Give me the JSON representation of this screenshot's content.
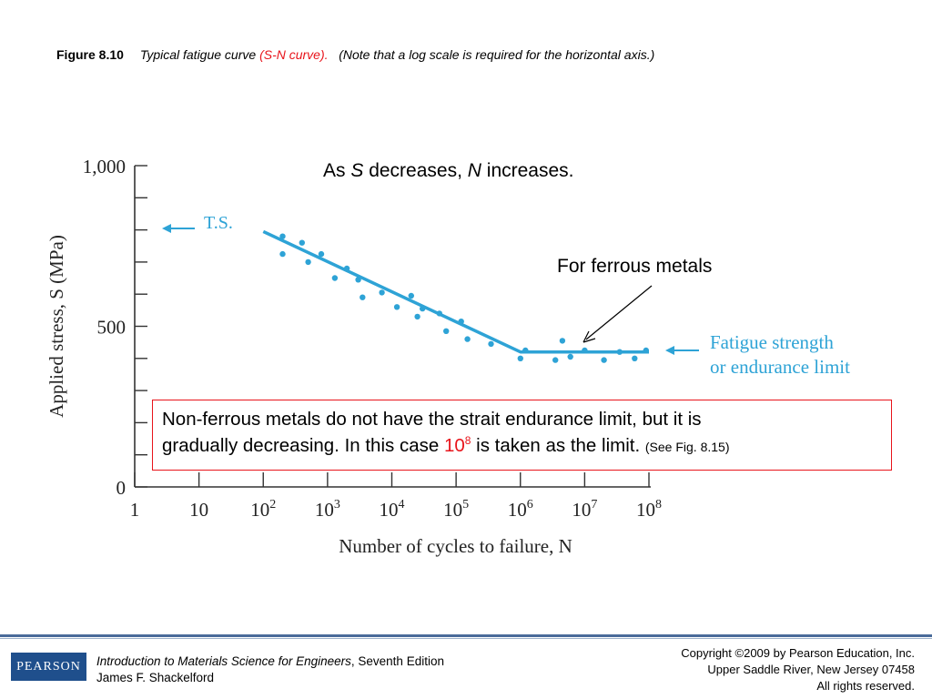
{
  "caption": {
    "figure_label": "Figure 8.10",
    "text": "Typical fatigue curve",
    "highlight": "(S-N curve).",
    "note": "(Note that a log scale is required for the horizontal axis.)"
  },
  "annotations": {
    "s_n_prefix": "As ",
    "s_var": "S",
    "s_n_mid": " decreases, ",
    "n_var": "N",
    "s_n_suffix": " increases.",
    "ferrous": "For ferrous metals",
    "callout_line1": "Non-ferrous metals do not have the strait endurance limit, but it is",
    "callout_line2_pre": "gradually decreasing. In this case ",
    "callout_base": "10",
    "callout_exp": "8",
    "callout_line2_post": " is taken as the limit. ",
    "callout_ref": "(See Fig. 8.15)"
  },
  "chart_data": {
    "type": "scatter",
    "title": "",
    "xlabel": "Number of cycles to failure, N",
    "ylabel": "Applied stress, S (MPa)",
    "xscale": "log",
    "xlim": [
      1,
      100000000
    ],
    "ylim": [
      0,
      1000
    ],
    "x_ticks": [
      {
        "value": 1,
        "base": "1",
        "exp": ""
      },
      {
        "value": 10,
        "base": "10",
        "exp": ""
      },
      {
        "value": 100,
        "base": "10",
        "exp": "2"
      },
      {
        "value": 1000,
        "base": "10",
        "exp": "3"
      },
      {
        "value": 10000,
        "base": "10",
        "exp": "4"
      },
      {
        "value": 100000,
        "base": "10",
        "exp": "5"
      },
      {
        "value": 1000000,
        "base": "10",
        "exp": "6"
      },
      {
        "value": 10000000,
        "base": "10",
        "exp": "7"
      },
      {
        "value": 100000000,
        "base": "10",
        "exp": "8"
      }
    ],
    "y_tick_labels": [
      {
        "value": 0,
        "label": "0"
      },
      {
        "value": 500,
        "label": "500"
      },
      {
        "value": 1000,
        "label": "1,000"
      }
    ],
    "y_minor_step": 100,
    "points": [
      {
        "x": 200,
        "y": 780
      },
      {
        "x": 200,
        "y": 725
      },
      {
        "x": 400,
        "y": 760
      },
      {
        "x": 500,
        "y": 700
      },
      {
        "x": 800,
        "y": 725
      },
      {
        "x": 1300,
        "y": 650
      },
      {
        "x": 2000,
        "y": 680
      },
      {
        "x": 3000,
        "y": 645
      },
      {
        "x": 3500,
        "y": 590
      },
      {
        "x": 7000,
        "y": 605
      },
      {
        "x": 12000,
        "y": 560
      },
      {
        "x": 20000,
        "y": 595
      },
      {
        "x": 25000,
        "y": 530
      },
      {
        "x": 30000,
        "y": 555
      },
      {
        "x": 55000,
        "y": 540
      },
      {
        "x": 70000,
        "y": 485
      },
      {
        "x": 120000,
        "y": 515
      },
      {
        "x": 150000,
        "y": 460
      },
      {
        "x": 350000,
        "y": 445
      },
      {
        "x": 1200000,
        "y": 425
      },
      {
        "x": 1000000,
        "y": 400
      },
      {
        "x": 3500000,
        "y": 395
      },
      {
        "x": 4500000,
        "y": 455
      },
      {
        "x": 6000000,
        "y": 405
      },
      {
        "x": 10000000,
        "y": 425
      },
      {
        "x": 20000000,
        "y": 395
      },
      {
        "x": 35000000,
        "y": 420
      },
      {
        "x": 60000000,
        "y": 400
      },
      {
        "x": 90000000,
        "y": 425
      }
    ],
    "curve": [
      {
        "x": 100,
        "y": 795
      },
      {
        "x": 1000000,
        "y": 420
      },
      {
        "x": 100000000,
        "y": 420
      }
    ],
    "ts_label": "T.S.",
    "fatigue_label_line1": "Fatigue strength",
    "fatigue_label_line2": "or endurance limit",
    "curve_color": "#2ea3d6",
    "point_color": "#2ea3d6"
  },
  "footer": {
    "logo": "PEARSON",
    "book_title": "Introduction to Materials Science for Engineers",
    "book_edition": ", Seventh Edition",
    "author": "James F. Shackelford",
    "copyright1": "Copyright ©2009 by Pearson Education, Inc.",
    "copyright2": "Upper Saddle River, New Jersey 07458",
    "copyright3": "All rights reserved."
  }
}
